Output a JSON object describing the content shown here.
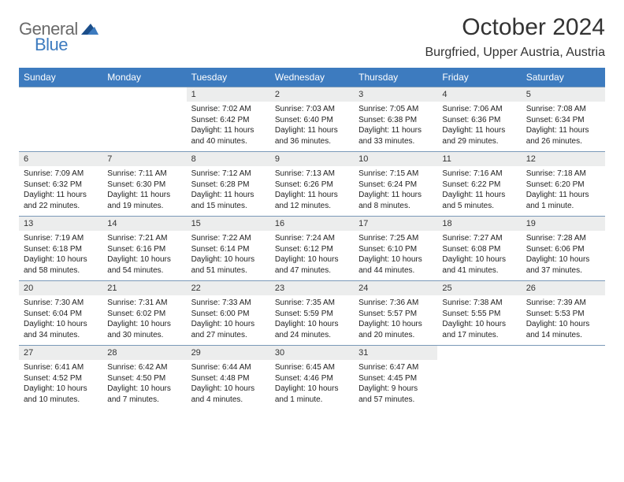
{
  "branding": {
    "logo_word1": "General",
    "logo_word2": "Blue",
    "logo_word1_color": "#6a6a6a",
    "logo_word2_color": "#3d7bbf",
    "triangle_fill": "#1b4e8a"
  },
  "header": {
    "title": "October 2024",
    "location": "Burgfried, Upper Austria, Austria",
    "title_fontsize": 30,
    "location_fontsize": 16,
    "text_color": "#333333"
  },
  "calendar": {
    "header_bg": "#3d7bbf",
    "header_fg": "#ffffff",
    "daynum_bg": "#eceded",
    "border_color": "#7a99b8",
    "columns": [
      "Sunday",
      "Monday",
      "Tuesday",
      "Wednesday",
      "Thursday",
      "Friday",
      "Saturday"
    ],
    "weeks": [
      [
        null,
        null,
        {
          "num": "1",
          "sunrise": "Sunrise: 7:02 AM",
          "sunset": "Sunset: 6:42 PM",
          "daylight1": "Daylight: 11 hours",
          "daylight2": "and 40 minutes."
        },
        {
          "num": "2",
          "sunrise": "Sunrise: 7:03 AM",
          "sunset": "Sunset: 6:40 PM",
          "daylight1": "Daylight: 11 hours",
          "daylight2": "and 36 minutes."
        },
        {
          "num": "3",
          "sunrise": "Sunrise: 7:05 AM",
          "sunset": "Sunset: 6:38 PM",
          "daylight1": "Daylight: 11 hours",
          "daylight2": "and 33 minutes."
        },
        {
          "num": "4",
          "sunrise": "Sunrise: 7:06 AM",
          "sunset": "Sunset: 6:36 PM",
          "daylight1": "Daylight: 11 hours",
          "daylight2": "and 29 minutes."
        },
        {
          "num": "5",
          "sunrise": "Sunrise: 7:08 AM",
          "sunset": "Sunset: 6:34 PM",
          "daylight1": "Daylight: 11 hours",
          "daylight2": "and 26 minutes."
        }
      ],
      [
        {
          "num": "6",
          "sunrise": "Sunrise: 7:09 AM",
          "sunset": "Sunset: 6:32 PM",
          "daylight1": "Daylight: 11 hours",
          "daylight2": "and 22 minutes."
        },
        {
          "num": "7",
          "sunrise": "Sunrise: 7:11 AM",
          "sunset": "Sunset: 6:30 PM",
          "daylight1": "Daylight: 11 hours",
          "daylight2": "and 19 minutes."
        },
        {
          "num": "8",
          "sunrise": "Sunrise: 7:12 AM",
          "sunset": "Sunset: 6:28 PM",
          "daylight1": "Daylight: 11 hours",
          "daylight2": "and 15 minutes."
        },
        {
          "num": "9",
          "sunrise": "Sunrise: 7:13 AM",
          "sunset": "Sunset: 6:26 PM",
          "daylight1": "Daylight: 11 hours",
          "daylight2": "and 12 minutes."
        },
        {
          "num": "10",
          "sunrise": "Sunrise: 7:15 AM",
          "sunset": "Sunset: 6:24 PM",
          "daylight1": "Daylight: 11 hours",
          "daylight2": "and 8 minutes."
        },
        {
          "num": "11",
          "sunrise": "Sunrise: 7:16 AM",
          "sunset": "Sunset: 6:22 PM",
          "daylight1": "Daylight: 11 hours",
          "daylight2": "and 5 minutes."
        },
        {
          "num": "12",
          "sunrise": "Sunrise: 7:18 AM",
          "sunset": "Sunset: 6:20 PM",
          "daylight1": "Daylight: 11 hours",
          "daylight2": "and 1 minute."
        }
      ],
      [
        {
          "num": "13",
          "sunrise": "Sunrise: 7:19 AM",
          "sunset": "Sunset: 6:18 PM",
          "daylight1": "Daylight: 10 hours",
          "daylight2": "and 58 minutes."
        },
        {
          "num": "14",
          "sunrise": "Sunrise: 7:21 AM",
          "sunset": "Sunset: 6:16 PM",
          "daylight1": "Daylight: 10 hours",
          "daylight2": "and 54 minutes."
        },
        {
          "num": "15",
          "sunrise": "Sunrise: 7:22 AM",
          "sunset": "Sunset: 6:14 PM",
          "daylight1": "Daylight: 10 hours",
          "daylight2": "and 51 minutes."
        },
        {
          "num": "16",
          "sunrise": "Sunrise: 7:24 AM",
          "sunset": "Sunset: 6:12 PM",
          "daylight1": "Daylight: 10 hours",
          "daylight2": "and 47 minutes."
        },
        {
          "num": "17",
          "sunrise": "Sunrise: 7:25 AM",
          "sunset": "Sunset: 6:10 PM",
          "daylight1": "Daylight: 10 hours",
          "daylight2": "and 44 minutes."
        },
        {
          "num": "18",
          "sunrise": "Sunrise: 7:27 AM",
          "sunset": "Sunset: 6:08 PM",
          "daylight1": "Daylight: 10 hours",
          "daylight2": "and 41 minutes."
        },
        {
          "num": "19",
          "sunrise": "Sunrise: 7:28 AM",
          "sunset": "Sunset: 6:06 PM",
          "daylight1": "Daylight: 10 hours",
          "daylight2": "and 37 minutes."
        }
      ],
      [
        {
          "num": "20",
          "sunrise": "Sunrise: 7:30 AM",
          "sunset": "Sunset: 6:04 PM",
          "daylight1": "Daylight: 10 hours",
          "daylight2": "and 34 minutes."
        },
        {
          "num": "21",
          "sunrise": "Sunrise: 7:31 AM",
          "sunset": "Sunset: 6:02 PM",
          "daylight1": "Daylight: 10 hours",
          "daylight2": "and 30 minutes."
        },
        {
          "num": "22",
          "sunrise": "Sunrise: 7:33 AM",
          "sunset": "Sunset: 6:00 PM",
          "daylight1": "Daylight: 10 hours",
          "daylight2": "and 27 minutes."
        },
        {
          "num": "23",
          "sunrise": "Sunrise: 7:35 AM",
          "sunset": "Sunset: 5:59 PM",
          "daylight1": "Daylight: 10 hours",
          "daylight2": "and 24 minutes."
        },
        {
          "num": "24",
          "sunrise": "Sunrise: 7:36 AM",
          "sunset": "Sunset: 5:57 PM",
          "daylight1": "Daylight: 10 hours",
          "daylight2": "and 20 minutes."
        },
        {
          "num": "25",
          "sunrise": "Sunrise: 7:38 AM",
          "sunset": "Sunset: 5:55 PM",
          "daylight1": "Daylight: 10 hours",
          "daylight2": "and 17 minutes."
        },
        {
          "num": "26",
          "sunrise": "Sunrise: 7:39 AM",
          "sunset": "Sunset: 5:53 PM",
          "daylight1": "Daylight: 10 hours",
          "daylight2": "and 14 minutes."
        }
      ],
      [
        {
          "num": "27",
          "sunrise": "Sunrise: 6:41 AM",
          "sunset": "Sunset: 4:52 PM",
          "daylight1": "Daylight: 10 hours",
          "daylight2": "and 10 minutes."
        },
        {
          "num": "28",
          "sunrise": "Sunrise: 6:42 AM",
          "sunset": "Sunset: 4:50 PM",
          "daylight1": "Daylight: 10 hours",
          "daylight2": "and 7 minutes."
        },
        {
          "num": "29",
          "sunrise": "Sunrise: 6:44 AM",
          "sunset": "Sunset: 4:48 PM",
          "daylight1": "Daylight: 10 hours",
          "daylight2": "and 4 minutes."
        },
        {
          "num": "30",
          "sunrise": "Sunrise: 6:45 AM",
          "sunset": "Sunset: 4:46 PM",
          "daylight1": "Daylight: 10 hours",
          "daylight2": "and 1 minute."
        },
        {
          "num": "31",
          "sunrise": "Sunrise: 6:47 AM",
          "sunset": "Sunset: 4:45 PM",
          "daylight1": "Daylight: 9 hours",
          "daylight2": "and 57 minutes."
        },
        null,
        null
      ]
    ]
  }
}
